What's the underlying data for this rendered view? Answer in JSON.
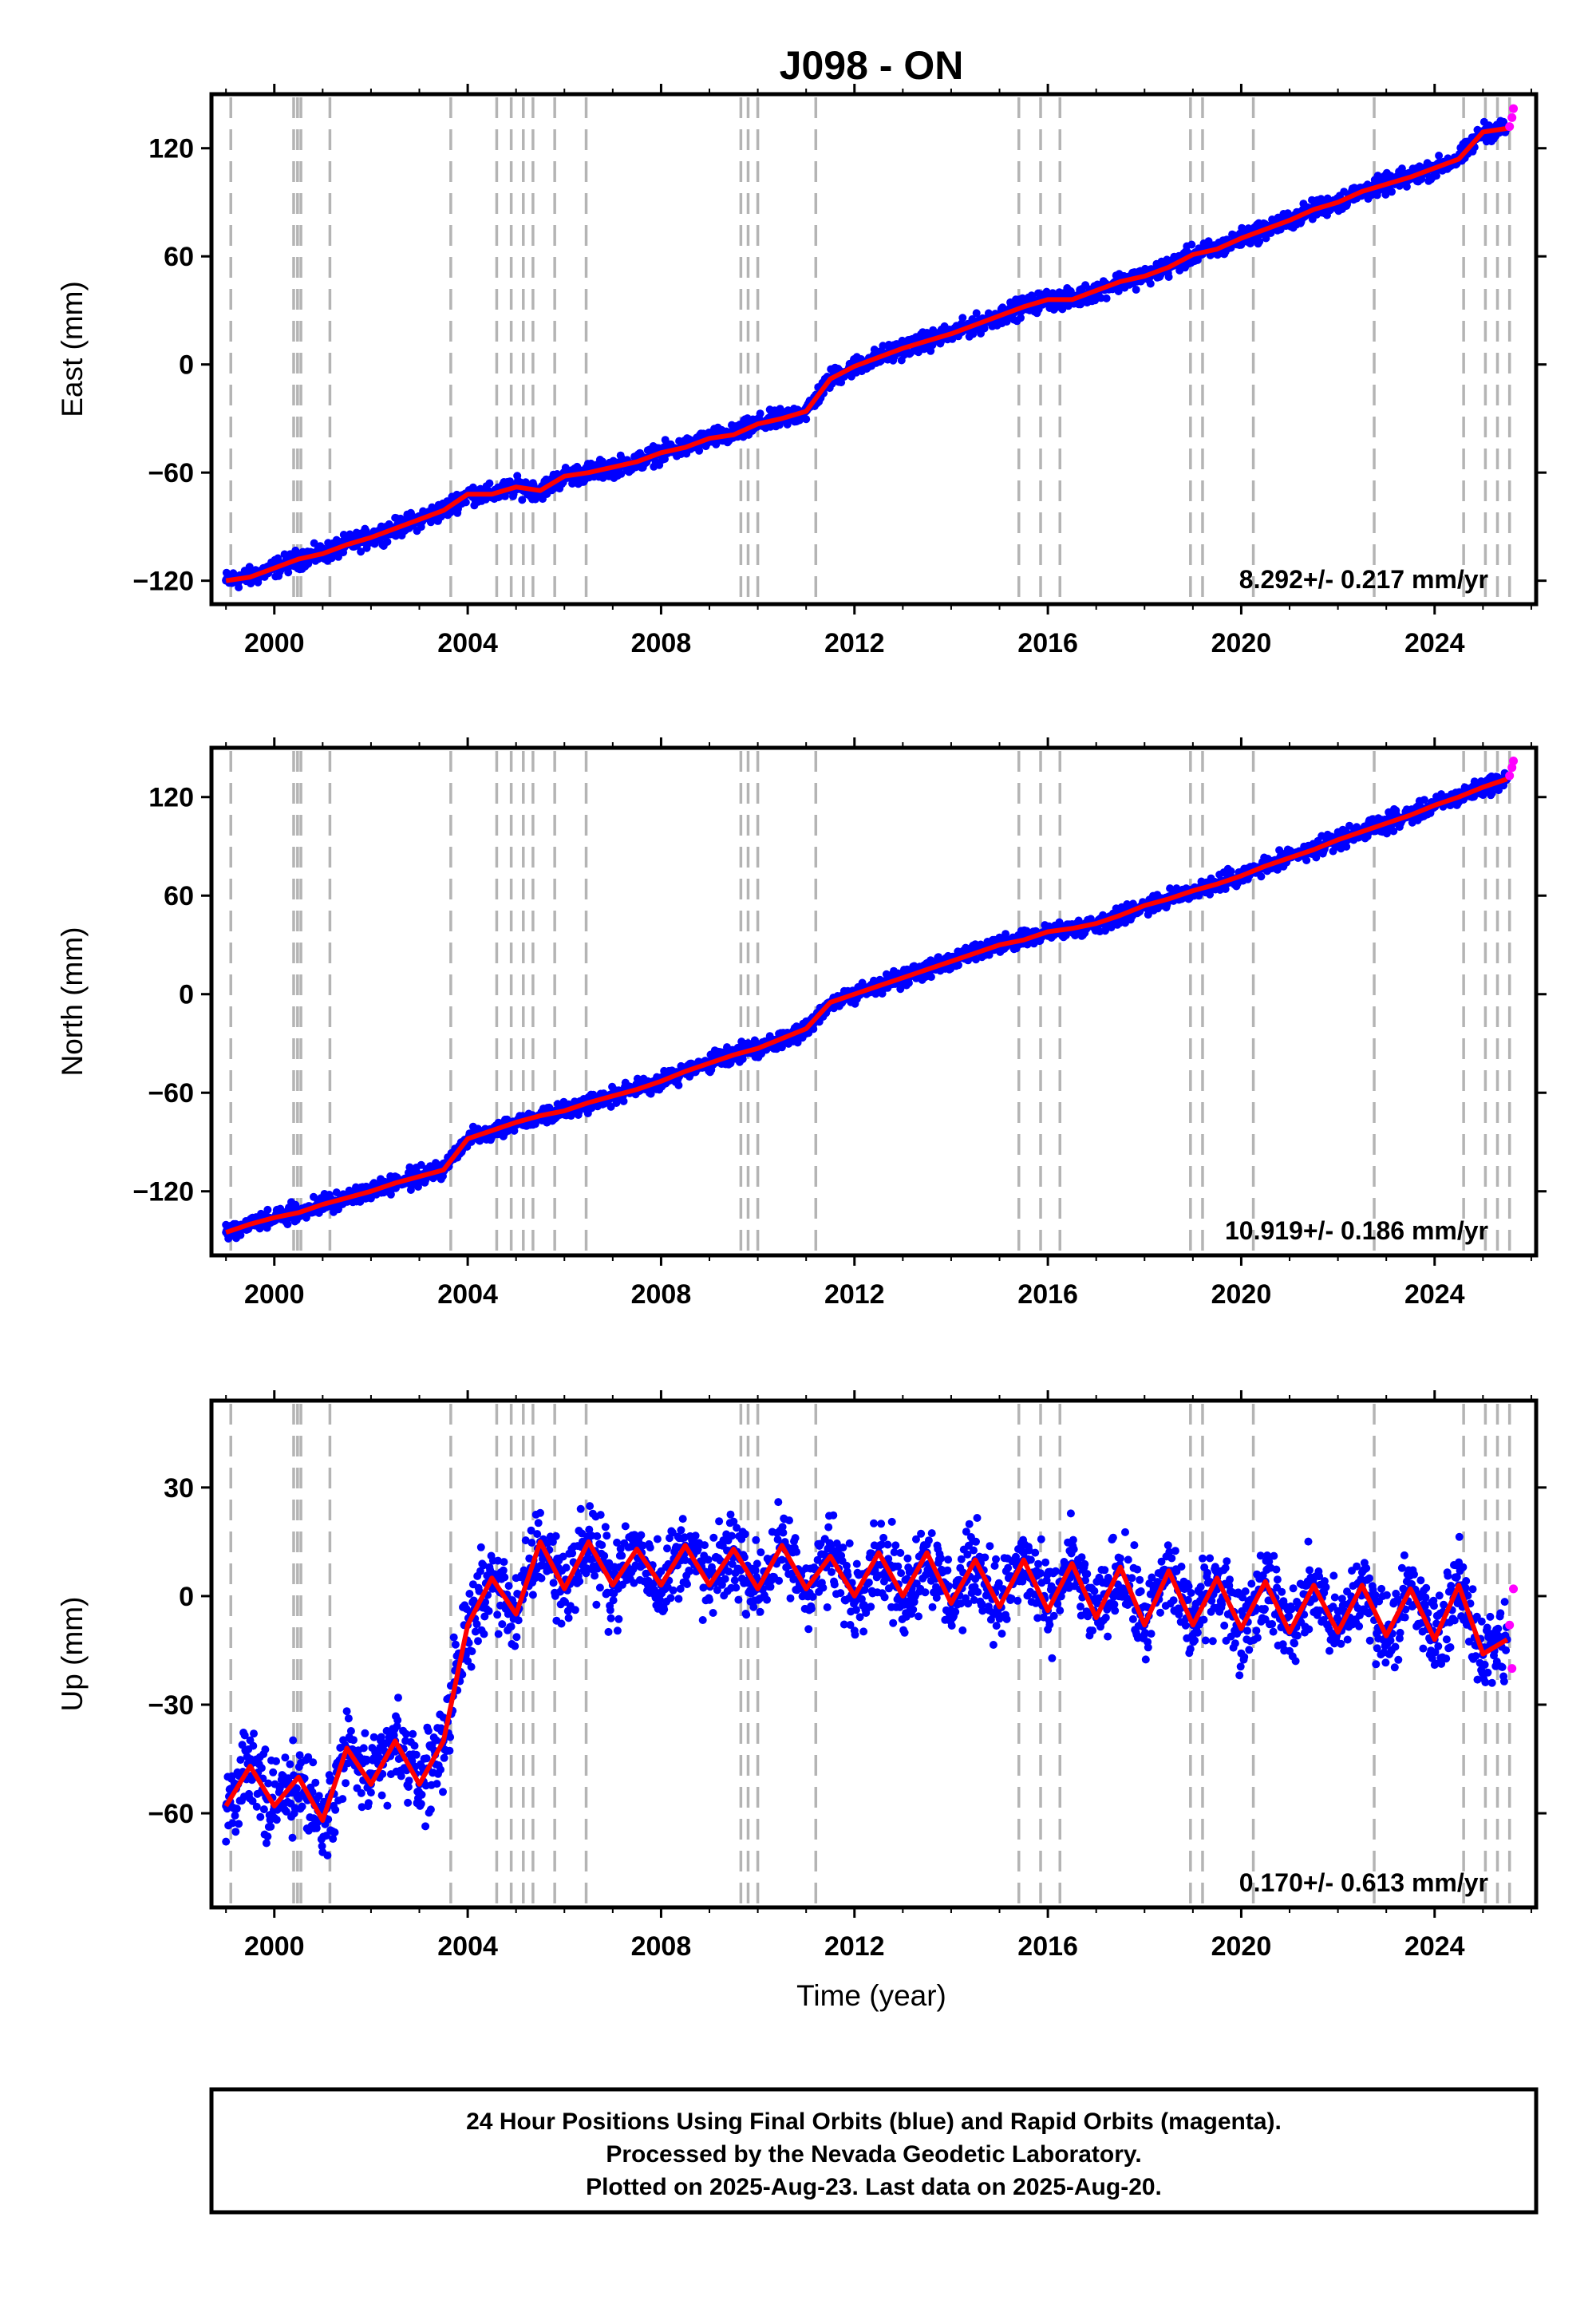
{
  "title": "J098 - ON",
  "xlabel": "Time (year)",
  "caption": [
    "24 Hour Positions Using Final Orbits (blue) and Rapid Orbits (magenta).",
    "Processed by the Nevada Geodetic Laboratory.",
    "Plotted on 2025-Aug-23. Last data on 2025-Aug-20."
  ],
  "colors": {
    "final": "#0000ff",
    "rapid": "#ff00ff",
    "model": "#ff0000",
    "breaks": "#b4b4b4"
  },
  "chart_data": [
    {
      "type": "scatter",
      "panel": "east",
      "ylabel": "East (mm)",
      "rate": "8.292+/- 0.217 mm/yr",
      "xlim": [
        1998.7,
        2026.1
      ],
      "ylim": [
        -133,
        150
      ],
      "xticks": [
        2000,
        2004,
        2008,
        2012,
        2016,
        2020,
        2024
      ],
      "yticks": [
        -120,
        -60,
        0,
        60,
        120
      ],
      "series": [
        {
          "kind": "final",
          "x": [
            1999.0,
            1999.5,
            2000.0,
            2000.5,
            2001.0,
            2001.5,
            2002.0,
            2002.5,
            2003.0,
            2003.5,
            2004.0,
            2004.5,
            2005.0,
            2005.5,
            2006.0,
            2006.5,
            2007.0,
            2007.5,
            2008.0,
            2008.5,
            2009.0,
            2009.5,
            2010.0,
            2010.5,
            2011.0,
            2011.5,
            2012.0,
            2012.5,
            2013.0,
            2013.5,
            2014.0,
            2014.5,
            2015.0,
            2015.5,
            2016.0,
            2016.5,
            2017.0,
            2017.5,
            2018.0,
            2018.5,
            2019.0,
            2019.5,
            2020.0,
            2020.5,
            2021.0,
            2021.5,
            2022.0,
            2022.5,
            2023.0,
            2023.5,
            2024.0,
            2024.5,
            2025.0,
            2025.5
          ],
          "y": [
            -120,
            -118,
            -113,
            -108,
            -105,
            -100,
            -96,
            -91,
            -86,
            -81,
            -72,
            -72,
            -68,
            -70,
            -62,
            -60,
            -57,
            -54,
            -49,
            -46,
            -41,
            -39,
            -33,
            -30,
            -26,
            -8,
            -1,
            4,
            9,
            13,
            17,
            22,
            27,
            32,
            36,
            36,
            41,
            46,
            49,
            54,
            61,
            64,
            70,
            75,
            80,
            86,
            90,
            96,
            100,
            104,
            109,
            114,
            129,
            131
          ]
        },
        {
          "kind": "rapid",
          "x": [
            2025.55,
            2025.6,
            2025.63
          ],
          "y": [
            132,
            137,
            142
          ]
        }
      ],
      "model": {
        "x": [
          1999.0,
          1999.5,
          2000.0,
          2000.5,
          2001.0,
          2001.5,
          2002.0,
          2002.5,
          2003.0,
          2003.5,
          2004.0,
          2004.5,
          2005.0,
          2005.5,
          2006.0,
          2006.5,
          2007.0,
          2007.5,
          2008.0,
          2008.5,
          2009.0,
          2009.5,
          2010.0,
          2010.5,
          2011.0,
          2011.5,
          2012.0,
          2012.5,
          2013.0,
          2013.5,
          2014.0,
          2014.5,
          2015.0,
          2015.5,
          2016.0,
          2016.5,
          2017.0,
          2017.5,
          2018.0,
          2018.5,
          2019.0,
          2019.5,
          2020.0,
          2020.5,
          2021.0,
          2021.5,
          2022.0,
          2022.5,
          2023.0,
          2023.5,
          2024.0,
          2024.5,
          2025.0,
          2025.5
        ],
        "y": [
          -120,
          -118,
          -113,
          -108,
          -105,
          -100,
          -96,
          -91,
          -86,
          -81,
          -72,
          -72,
          -68,
          -70,
          -62,
          -60,
          -57,
          -54,
          -49,
          -46,
          -41,
          -39,
          -33,
          -30,
          -26,
          -8,
          -1,
          4,
          9,
          13,
          17,
          22,
          27,
          32,
          36,
          36,
          41,
          46,
          49,
          54,
          61,
          64,
          70,
          75,
          80,
          86,
          90,
          96,
          100,
          104,
          109,
          114,
          129,
          131
        ]
      }
    },
    {
      "type": "scatter",
      "panel": "north",
      "ylabel": "North (mm)",
      "rate": "10.919+/- 0.186 mm/yr",
      "xlim": [
        1998.7,
        2026.1
      ],
      "ylim": [
        -159,
        150
      ],
      "xticks": [
        2000,
        2004,
        2008,
        2012,
        2016,
        2020,
        2024
      ],
      "yticks": [
        -120,
        -60,
        0,
        60,
        120
      ],
      "series": [
        {
          "kind": "final",
          "x": [
            1999.0,
            1999.5,
            2000.0,
            2000.5,
            2001.0,
            2001.5,
            2002.0,
            2002.5,
            2003.0,
            2003.5,
            2004.0,
            2004.5,
            2005.0,
            2005.5,
            2006.0,
            2006.5,
            2007.0,
            2007.5,
            2008.0,
            2008.5,
            2009.0,
            2009.5,
            2010.0,
            2010.5,
            2011.0,
            2011.5,
            2012.0,
            2012.5,
            2013.0,
            2013.5,
            2014.0,
            2014.5,
            2015.0,
            2015.5,
            2016.0,
            2016.5,
            2017.0,
            2017.5,
            2018.0,
            2018.5,
            2019.0,
            2019.5,
            2020.0,
            2020.5,
            2021.0,
            2021.5,
            2022.0,
            2022.5,
            2023.0,
            2023.5,
            2024.0,
            2024.5,
            2025.0,
            2025.5
          ],
          "y": [
            -145,
            -140,
            -136,
            -133,
            -128,
            -124,
            -120,
            -115,
            -111,
            -107,
            -88,
            -83,
            -78,
            -74,
            -71,
            -66,
            -62,
            -58,
            -53,
            -47,
            -42,
            -37,
            -33,
            -27,
            -21,
            -5,
            0,
            5,
            10,
            15,
            20,
            25,
            30,
            33,
            38,
            40,
            43,
            48,
            54,
            58,
            63,
            67,
            72,
            78,
            83,
            88,
            94,
            99,
            104,
            109,
            115,
            120,
            126,
            131
          ]
        },
        {
          "kind": "rapid",
          "x": [
            2025.55,
            2025.6,
            2025.63
          ],
          "y": [
            133,
            138,
            142
          ]
        }
      ],
      "model": {
        "x": [
          1999.0,
          1999.5,
          2000.0,
          2000.5,
          2001.0,
          2001.5,
          2002.0,
          2002.5,
          2003.0,
          2003.5,
          2004.0,
          2004.5,
          2005.0,
          2005.5,
          2006.0,
          2006.5,
          2007.0,
          2007.5,
          2008.0,
          2008.5,
          2009.0,
          2009.5,
          2010.0,
          2010.5,
          2011.0,
          2011.5,
          2012.0,
          2012.5,
          2013.0,
          2013.5,
          2014.0,
          2014.5,
          2015.0,
          2015.5,
          2016.0,
          2016.5,
          2017.0,
          2017.5,
          2018.0,
          2018.5,
          2019.0,
          2019.5,
          2020.0,
          2020.5,
          2021.0,
          2021.5,
          2022.0,
          2022.5,
          2023.0,
          2023.5,
          2024.0,
          2024.5,
          2025.0,
          2025.5
        ],
        "y": [
          -145,
          -140,
          -136,
          -133,
          -128,
          -124,
          -120,
          -115,
          -111,
          -107,
          -88,
          -83,
          -78,
          -74,
          -71,
          -66,
          -62,
          -58,
          -53,
          -47,
          -42,
          -37,
          -33,
          -27,
          -21,
          -5,
          0,
          5,
          10,
          15,
          20,
          25,
          30,
          33,
          38,
          40,
          43,
          48,
          54,
          58,
          63,
          67,
          72,
          78,
          83,
          88,
          94,
          99,
          104,
          109,
          115,
          120,
          126,
          131
        ]
      }
    },
    {
      "type": "scatter",
      "panel": "up",
      "ylabel": "Up (mm)",
      "rate": "0.170+/- 0.613 mm/yr",
      "xlim": [
        1998.7,
        2026.1
      ],
      "ylim": [
        -86,
        54
      ],
      "xticks": [
        2000,
        2004,
        2008,
        2012,
        2016,
        2020,
        2024
      ],
      "yticks": [
        -60,
        -30,
        0,
        30
      ],
      "series": [
        {
          "kind": "final",
          "x": [
            1999.0,
            1999.5,
            2000.0,
            2000.5,
            2001.0,
            2001.5,
            2002.0,
            2002.5,
            2003.0,
            2003.5,
            2004.0,
            2004.5,
            2005.0,
            2005.5,
            2006.0,
            2006.5,
            2007.0,
            2007.5,
            2008.0,
            2008.5,
            2009.0,
            2009.5,
            2010.0,
            2010.5,
            2011.0,
            2011.5,
            2012.0,
            2012.5,
            2013.0,
            2013.5,
            2014.0,
            2014.5,
            2015.0,
            2015.5,
            2016.0,
            2016.5,
            2017.0,
            2017.5,
            2018.0,
            2018.5,
            2019.0,
            2019.5,
            2020.0,
            2020.5,
            2021.0,
            2021.5,
            2022.0,
            2022.5,
            2023.0,
            2023.5,
            2024.0,
            2024.5,
            2025.0,
            2025.5
          ],
          "y": [
            -58,
            -47,
            -58,
            -50,
            -62,
            -42,
            -52,
            -40,
            -52,
            -40,
            -8,
            5,
            -5,
            15,
            2,
            15,
            3,
            13,
            3,
            14,
            3,
            13,
            2,
            14,
            2,
            11,
            0,
            12,
            0,
            12,
            -2,
            10,
            -3,
            10,
            -4,
            9,
            -6,
            8,
            -8,
            7,
            -8,
            5,
            -9,
            4,
            -10,
            3,
            -10,
            3,
            -11,
            2,
            -12,
            3,
            -16,
            -12
          ]
        },
        {
          "kind": "rapid",
          "x": [
            2025.55,
            2025.6,
            2025.63
          ],
          "y": [
            -8,
            -20,
            2
          ]
        }
      ],
      "model": {
        "x": [
          1999.0,
          1999.5,
          2000.0,
          2000.5,
          2001.0,
          2001.5,
          2002.0,
          2002.5,
          2003.0,
          2003.5,
          2004.0,
          2004.5,
          2005.0,
          2005.5,
          2006.0,
          2006.5,
          2007.0,
          2007.5,
          2008.0,
          2008.5,
          2009.0,
          2009.5,
          2010.0,
          2010.5,
          2011.0,
          2011.5,
          2012.0,
          2012.5,
          2013.0,
          2013.5,
          2014.0,
          2014.5,
          2015.0,
          2015.5,
          2016.0,
          2016.5,
          2017.0,
          2017.5,
          2018.0,
          2018.5,
          2019.0,
          2019.5,
          2020.0,
          2020.5,
          2021.0,
          2021.5,
          2022.0,
          2022.5,
          2023.0,
          2023.5,
          2024.0,
          2024.5,
          2025.0,
          2025.5
        ],
        "y": [
          -58,
          -47,
          -58,
          -50,
          -62,
          -42,
          -52,
          -40,
          -52,
          -40,
          -8,
          5,
          -5,
          15,
          2,
          15,
          3,
          13,
          3,
          14,
          3,
          13,
          2,
          14,
          2,
          11,
          0,
          12,
          0,
          12,
          -2,
          10,
          -3,
          10,
          -4,
          9,
          -6,
          8,
          -8,
          7,
          -8,
          5,
          -9,
          4,
          -10,
          3,
          -10,
          3,
          -11,
          2,
          -12,
          3,
          -16,
          -12
        ]
      }
    }
  ],
  "breaks": [
    1999.1,
    2000.4,
    2000.48,
    2000.55,
    2001.15,
    2003.65,
    2004.6,
    2004.9,
    2005.15,
    2005.35,
    2005.8,
    2006.45,
    2009.65,
    2009.8,
    2010.0,
    2011.2,
    2015.4,
    2015.85,
    2016.25,
    2018.95,
    2019.2,
    2020.25,
    2022.75,
    2024.6,
    2025.05,
    2025.3,
    2025.55
  ]
}
